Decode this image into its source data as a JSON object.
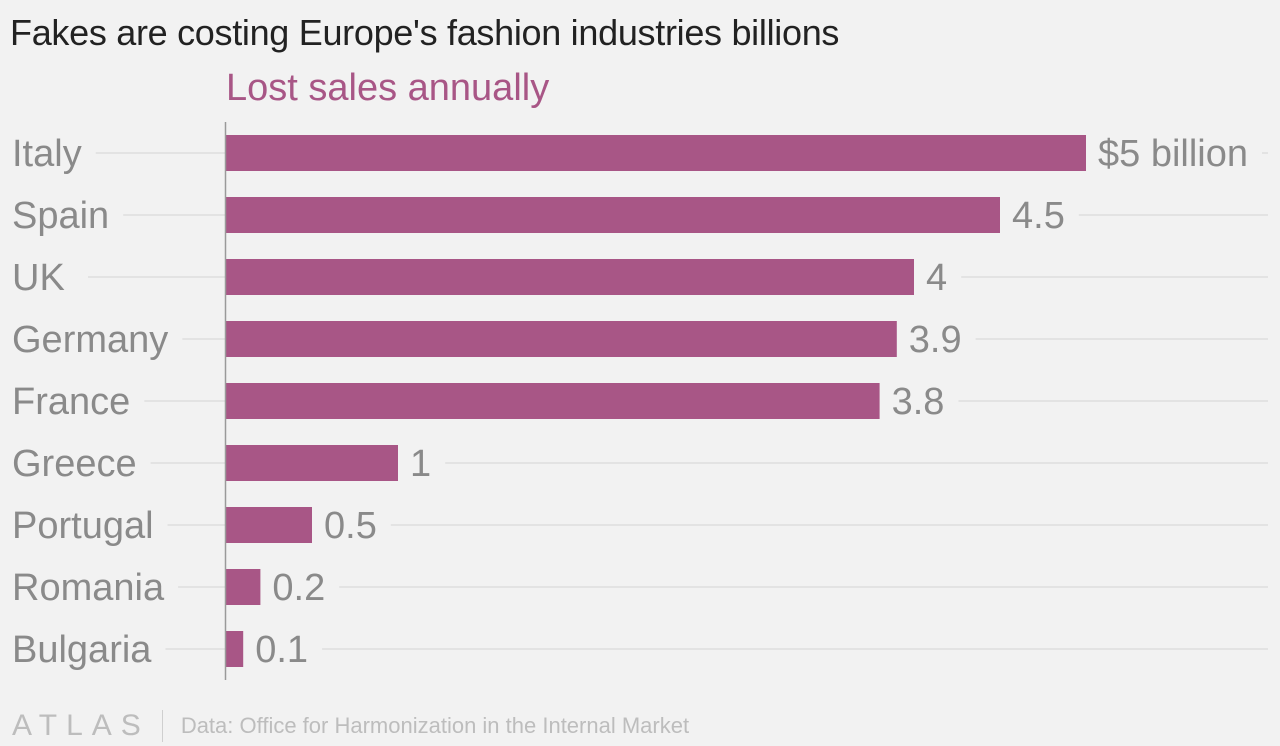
{
  "title": "Fakes are costing Europe's fashion industries billions",
  "subtitle": "Lost sales annually",
  "footer": {
    "logo": "ATLAS",
    "source": "Data: Office for Harmonization in the Internal Market"
  },
  "colors": {
    "bar": "#a85686",
    "subtitle": "#a85686",
    "label": "#8a8a8a",
    "gridline": "#e3e3e3",
    "axis": "#9a9a9a",
    "background": "#f2f2f2"
  },
  "chart_data": {
    "type": "bar",
    "orientation": "horizontal",
    "title": "Fakes are costing Europe's fashion industries billions",
    "subtitle": "Lost sales annually",
    "categories": [
      "Italy",
      "Spain",
      "UK",
      "Germany",
      "France",
      "Greece",
      "Portugal",
      "Romania",
      "Bulgaria"
    ],
    "values": [
      5,
      4.5,
      4,
      3.9,
      3.8,
      1,
      0.5,
      0.2,
      0.1
    ],
    "value_labels": [
      "$5 billion",
      "4.5",
      "4",
      "3.9",
      "3.8",
      "1",
      "0.5",
      "0.2",
      "0.1"
    ],
    "unit": "billion USD",
    "xlim": [
      0,
      5
    ],
    "grid": true,
    "legend": "none"
  }
}
